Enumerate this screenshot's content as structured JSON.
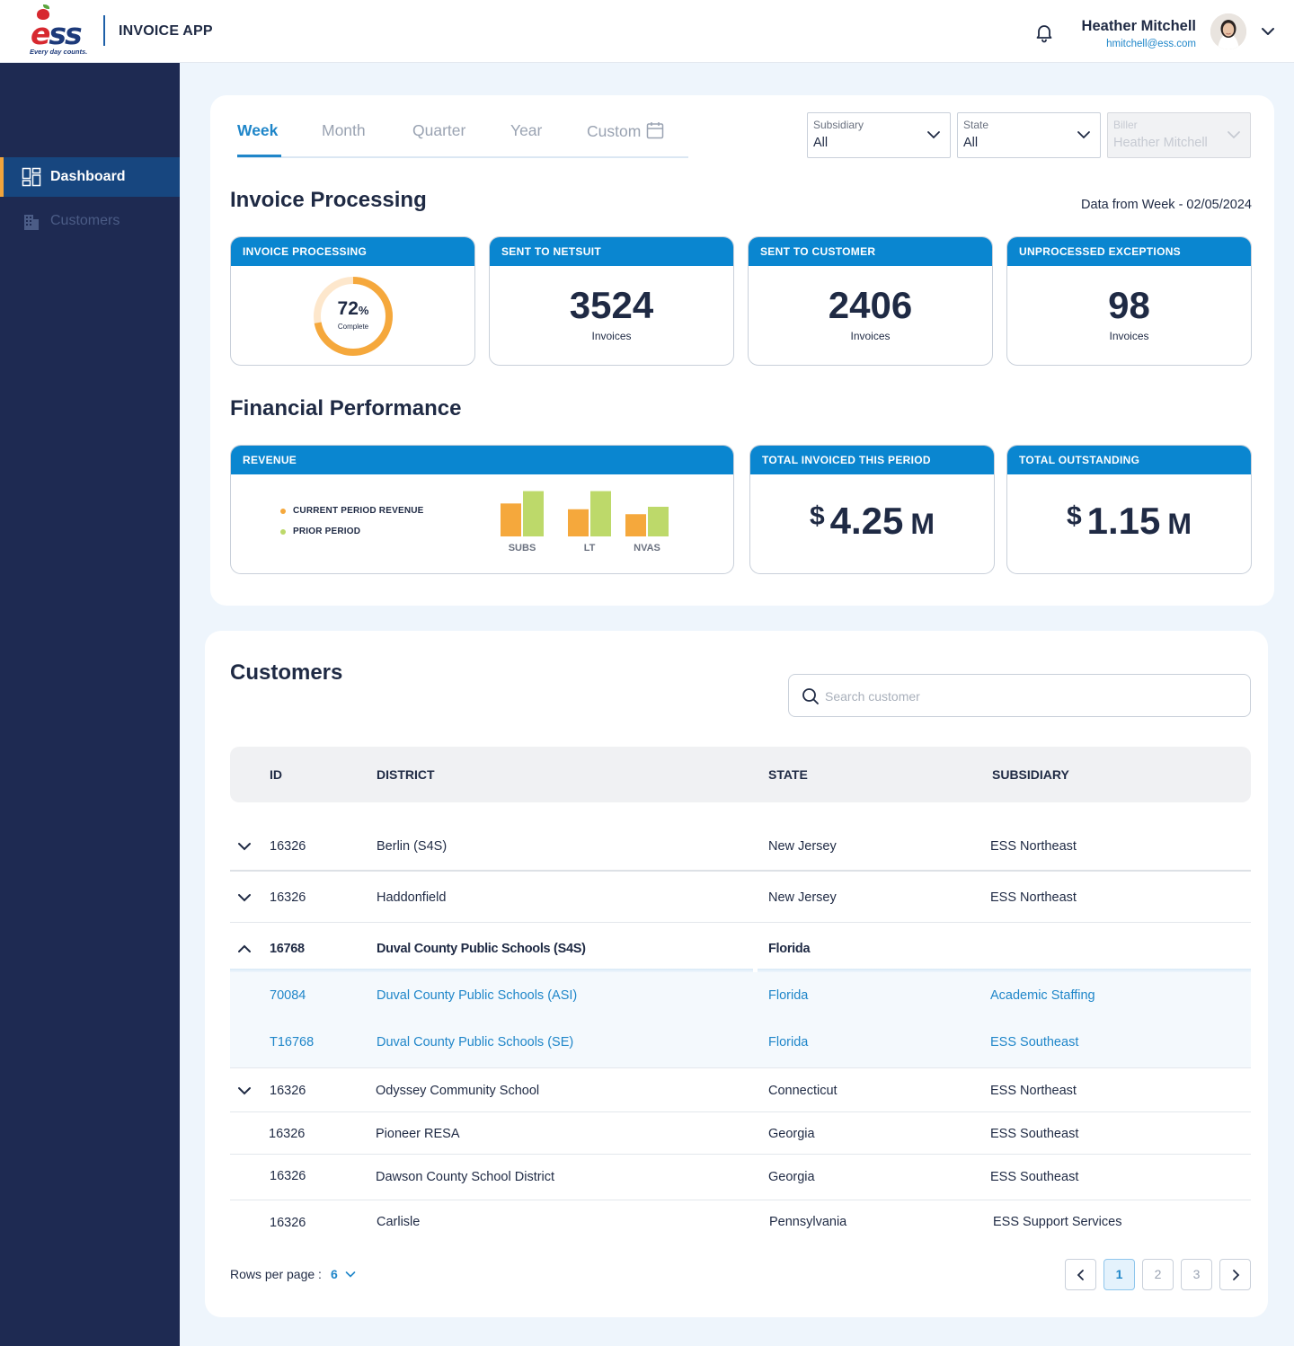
{
  "brand": {
    "logo_text": "ess",
    "tagline": "Every day counts.",
    "app_title": "INVOICE APP"
  },
  "user": {
    "name": "Heather Mitchell",
    "email": "hmitchell@ess.com"
  },
  "sidebar": {
    "items": [
      {
        "label": "Dashboard",
        "icon": "dashboard-icon",
        "active": true
      },
      {
        "label": "Customers",
        "icon": "building-icon",
        "active": false
      }
    ]
  },
  "period_tabs": [
    {
      "label": "Week",
      "active": true
    },
    {
      "label": "Month",
      "active": false
    },
    {
      "label": "Quarter",
      "active": false
    },
    {
      "label": "Year",
      "active": false
    },
    {
      "label": "Custom",
      "active": false
    }
  ],
  "filters": {
    "subsidiary": {
      "label": "Subsidiary",
      "value": "All"
    },
    "state": {
      "label": "State",
      "value": "All"
    },
    "biller": {
      "label": "Biller",
      "value": "Heather Mitchell",
      "disabled": true
    }
  },
  "invoice_processing": {
    "title": "Invoice Processing",
    "data_from": "Data from Week - 02/05/2024",
    "cards": {
      "processing": {
        "header": "INVOICE PROCESSING",
        "percent": 72,
        "percent_text": "72",
        "percent_sign": "%",
        "caption": "Complete"
      },
      "netsuit": {
        "header": "SENT TO NETSUIT",
        "value": "3524",
        "caption": "Invoices"
      },
      "customer": {
        "header": "SENT TO CUSTOMER",
        "value": "2406",
        "caption": "Invoices"
      },
      "exceptions": {
        "header": "UNPROCESSED EXCEPTIONS",
        "value": "98",
        "caption": "Invoices"
      }
    }
  },
  "financial": {
    "title": "Financial Performance",
    "revenue": {
      "header": "REVENUE",
      "legend_current": "CURRENT PERIOD REVENUE",
      "legend_prior": "PRIOR PERIOD"
    },
    "total_invoiced": {
      "header": "TOTAL INVOICED THIS PERIOD",
      "currency": "$",
      "amount": "4.25",
      "unit": "M"
    },
    "total_outstanding": {
      "header": "TOTAL OUTSTANDING",
      "currency": "$",
      "amount": "1.15",
      "unit": "M"
    }
  },
  "chart_data": {
    "type": "bar",
    "title": "REVENUE",
    "categories": [
      "SUBS",
      "LT",
      "NVAS"
    ],
    "series": [
      {
        "name": "CURRENT PERIOD REVENUE",
        "color": "#f5a83c",
        "values": [
          40,
          33,
          27
        ]
      },
      {
        "name": "PRIOR PERIOD",
        "color": "#bdd96a",
        "values": [
          55,
          55,
          36
        ]
      }
    ],
    "xlabel": "",
    "ylabel": "",
    "ylim": [
      0,
      60
    ]
  },
  "customers": {
    "title": "Customers",
    "search_placeholder": "Search customer",
    "columns": {
      "id": "ID",
      "district": "DISTRICT",
      "state": "STATE",
      "subsidiary": "SUBSIDIARY"
    },
    "rows": [
      {
        "id": "16326",
        "district": "Berlin (S4S)",
        "state": "New Jersey",
        "subsidiary": "ESS Northeast"
      },
      {
        "id": "16326",
        "district": "Haddonfield",
        "state": "New Jersey",
        "subsidiary": "ESS Northeast"
      },
      {
        "id": "16768",
        "district": "Duval County Public Schools (S4S)",
        "state": "Florida",
        "subsidiary": ""
      },
      {
        "id": "70084",
        "district": "Duval County Public Schools (ASI)",
        "state": "Florida",
        "subsidiary": "Academic Staffing"
      },
      {
        "id": "T16768",
        "district": "Duval County Public Schools (SE)",
        "state": "Florida",
        "subsidiary": "ESS Southeast"
      },
      {
        "id": "16326",
        "district": "Odyssey Community School",
        "state": "Connecticut",
        "subsidiary": "ESS Northeast"
      },
      {
        "id": "16326",
        "district": "Pioneer RESA",
        "state": "Georgia",
        "subsidiary": "ESS Southeast"
      },
      {
        "id": "16326",
        "district": "Dawson County School District",
        "state": "Georgia",
        "subsidiary": "ESS Southeast"
      },
      {
        "id": "16326",
        "district": "Carlisle",
        "state": "Pennsylvania",
        "subsidiary": "ESS Support Services"
      }
    ],
    "rows_per_page_label": "Rows per page :",
    "rows_per_page": "6",
    "pages": [
      "1",
      "2",
      "3"
    ],
    "current_page": "1"
  },
  "colors": {
    "accent": "#1f86c9",
    "header_blue": "#0a86d0",
    "sidebar": "#1e2a52",
    "sidebar_active": "#17467f",
    "donut_fill": "#f5a83c",
    "donut_track": "#fde7cc"
  }
}
